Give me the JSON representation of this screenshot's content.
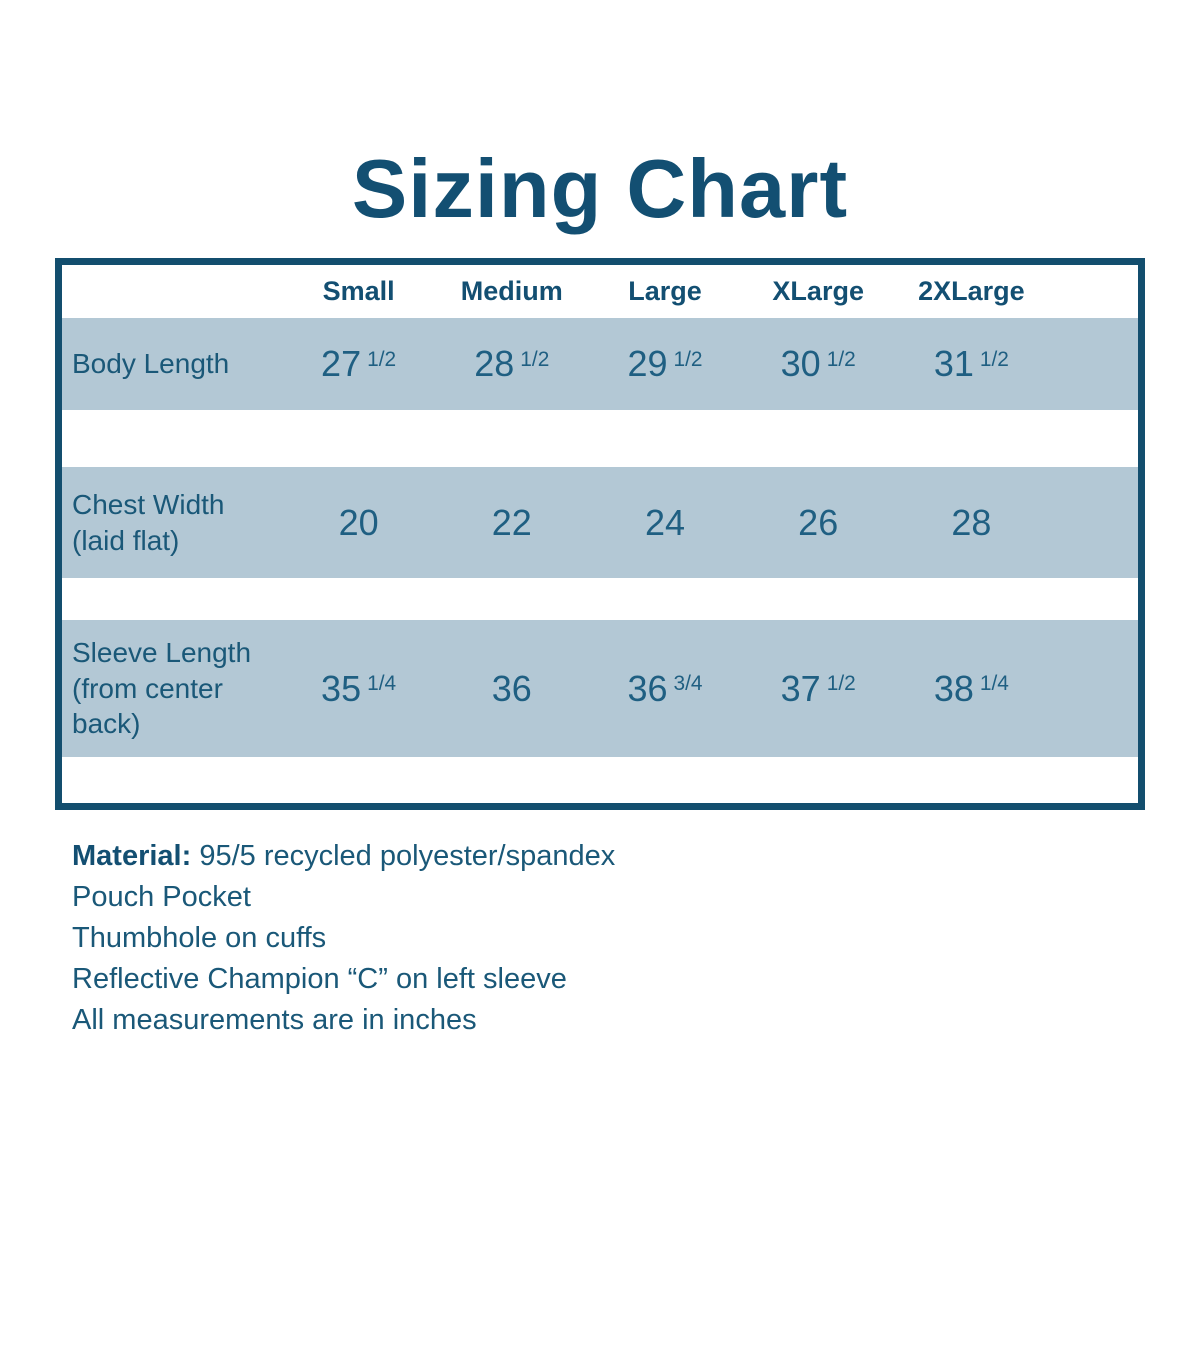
{
  "title": "Sizing Chart",
  "table": {
    "columns": [
      "Small",
      "Medium",
      "Large",
      "XLarge",
      "2XLarge"
    ],
    "rows": [
      {
        "label": "Body Length",
        "cells": [
          {
            "n": "27",
            "f": "1/2"
          },
          {
            "n": "28",
            "f": "1/2"
          },
          {
            "n": "29",
            "f": "1/2"
          },
          {
            "n": "30",
            "f": "1/2"
          },
          {
            "n": "31",
            "f": "1/2"
          }
        ]
      },
      {
        "label": "Chest Width\n(laid flat)",
        "cells": [
          {
            "n": "20"
          },
          {
            "n": "22"
          },
          {
            "n": "24"
          },
          {
            "n": "26"
          },
          {
            "n": "28"
          }
        ]
      },
      {
        "label": "Sleeve Length\n(from center\nback)",
        "cells": [
          {
            "n": "35",
            "f": "1/4"
          },
          {
            "n": "36"
          },
          {
            "n": "36",
            "f": "3/4"
          },
          {
            "n": "37",
            "f": "1/2"
          },
          {
            "n": "38",
            "f": "1/4"
          }
        ]
      }
    ]
  },
  "notes": {
    "material_label": "Material:",
    "material_text": "95/5 recycled polyester/spandex",
    "lines": [
      "Pouch Pocket",
      "Thumbhole on cuffs",
      "Reflective Champion “C” on left sleeve",
      "All measurements are in inches"
    ]
  },
  "colors": {
    "title": "#134f72",
    "text": "#1a5878",
    "value_text": "#1f5f82",
    "band": "#b3c8d5",
    "border": "#134e6e",
    "background": "#ffffff"
  },
  "chart_data": {
    "type": "table",
    "title": "Sizing Chart",
    "columns": [
      "Small",
      "Medium",
      "Large",
      "XLarge",
      "2XLarge"
    ],
    "rows": [
      {
        "label": "Body Length",
        "values": [
          "27 1/2",
          "28 1/2",
          "29 1/2",
          "30 1/2",
          "31 1/2"
        ]
      },
      {
        "label": "Chest Width (laid flat)",
        "values": [
          20,
          22,
          24,
          26,
          28
        ]
      },
      {
        "label": "Sleeve Length (from center back)",
        "values": [
          "35 1/4",
          "36",
          "36 3/4",
          "37 1/2",
          "38 1/4"
        ]
      }
    ],
    "units": "inches",
    "notes": [
      "Material: 95/5 recycled polyester/spandex",
      "Pouch Pocket",
      "Thumbhole on cuffs",
      "Reflective Champion “C” on left sleeve",
      "All measurements are in inches"
    ]
  }
}
